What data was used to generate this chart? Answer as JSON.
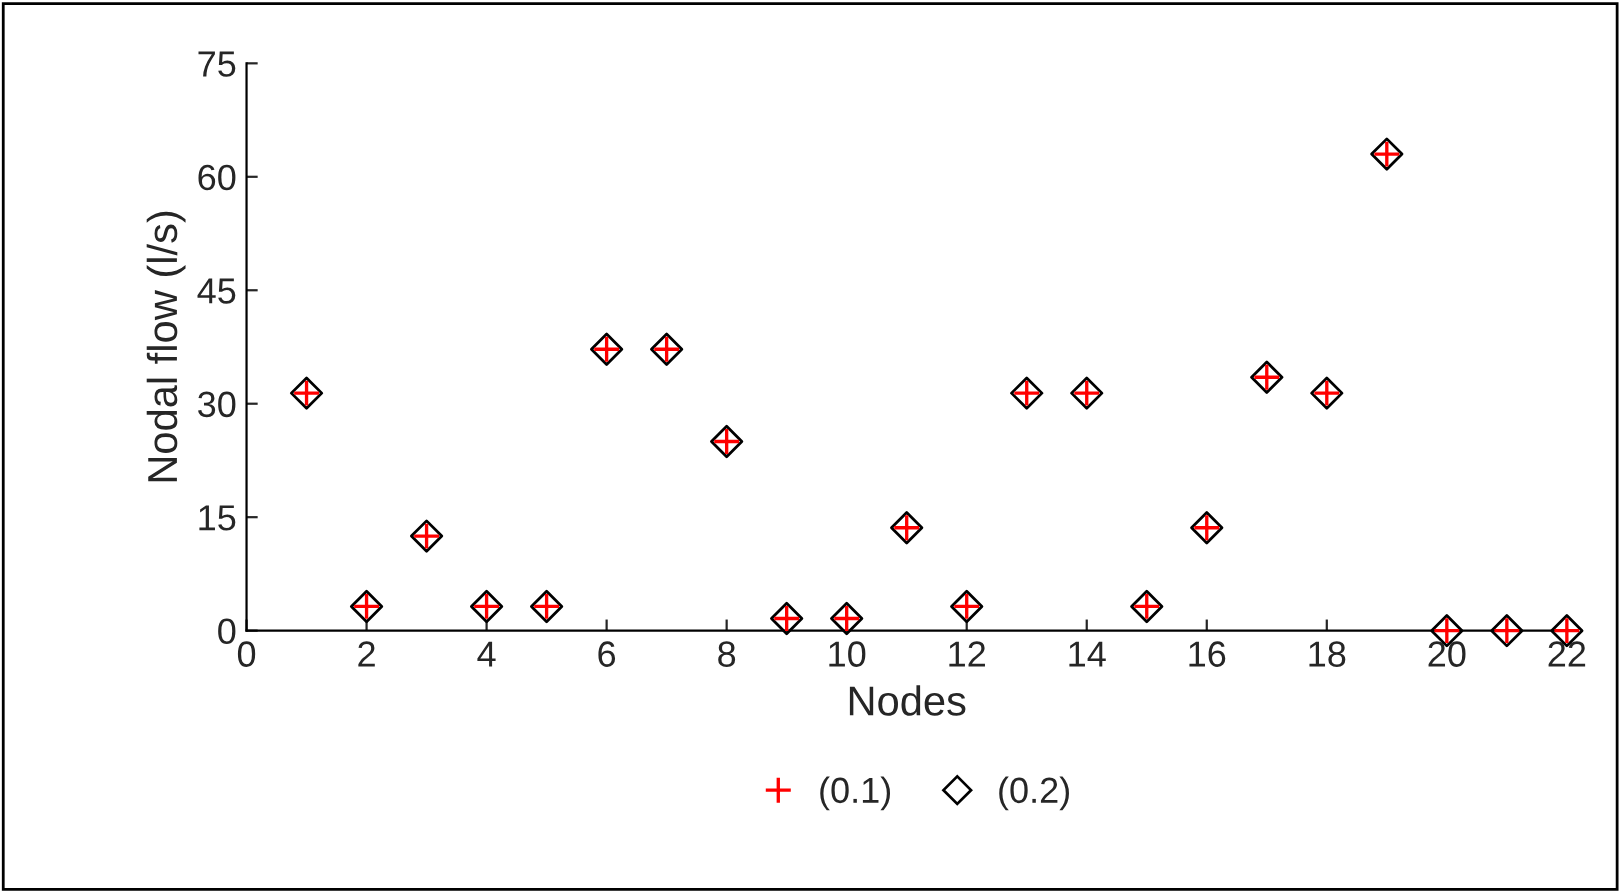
{
  "chart_data": {
    "type": "scatter",
    "xlabel": "Nodes",
    "ylabel": "Nodal flow (l/s)",
    "x": [
      1,
      2,
      3,
      4,
      5,
      6,
      7,
      8,
      9,
      10,
      11,
      12,
      13,
      14,
      15,
      16,
      17,
      18,
      19,
      20,
      21,
      22
    ],
    "series": [
      {
        "name": "(0.1)",
        "color": "#ff0000",
        "marker": "cross",
        "values": [
          31.4,
          3.2,
          12.5,
          3.2,
          3.2,
          37.2,
          37.2,
          25,
          1.6,
          1.6,
          13.6,
          3.2,
          31.4,
          31.4,
          3.2,
          13.6,
          33.5,
          31.4,
          63,
          0,
          0,
          0
        ]
      },
      {
        "name": "(0.2)",
        "color": "#000000",
        "marker": "diamond",
        "values": [
          31.4,
          3.2,
          12.5,
          3.2,
          3.2,
          37.2,
          37.2,
          25,
          1.6,
          1.6,
          13.6,
          3.2,
          31.4,
          31.4,
          3.2,
          13.6,
          33.5,
          31.4,
          63,
          0,
          0,
          0
        ]
      }
    ],
    "xlim": [
      0,
      22
    ],
    "xticks": [
      0,
      2,
      4,
      6,
      8,
      10,
      12,
      14,
      16,
      18,
      20,
      22
    ],
    "ylim": [
      0,
      75
    ],
    "yticks": [
      0,
      15,
      30,
      45,
      60,
      75
    ],
    "grid": false,
    "legend": "bottom"
  }
}
